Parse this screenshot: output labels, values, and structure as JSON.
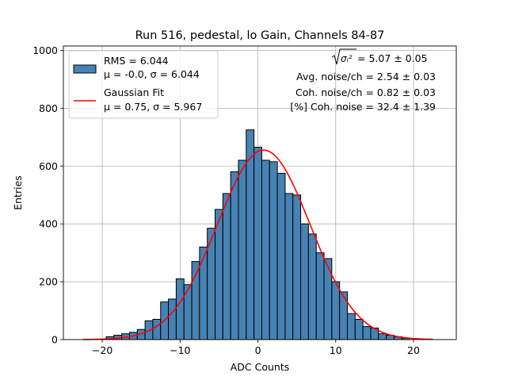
{
  "chart_data": {
    "type": "bar",
    "title": "Run 516, pedestal, lo Gain, Channels 84-87",
    "xlabel": "ADC Counts",
    "ylabel": "Entries",
    "xlim": [
      -25,
      25.5
    ],
    "ylim": [
      0,
      1015
    ],
    "xticks": [
      -20,
      -10,
      0,
      10,
      20
    ],
    "xtick_labels": [
      "−20",
      "−10",
      "0",
      "10",
      "20"
    ],
    "yticks": [
      0,
      200,
      400,
      600,
      800,
      1000
    ],
    "ytick_labels": [
      "0",
      "200",
      "400",
      "600",
      "800",
      "1000"
    ],
    "grid": true,
    "legend_position": "top-left",
    "legend": [
      {
        "kind": "histogram",
        "lines": [
          "RMS = 6.044",
          "μ = -0.0, σ = 6.044"
        ]
      },
      {
        "kind": "line",
        "lines": [
          "Gaussian Fit",
          "μ = 0.75, σ = 5.967"
        ]
      }
    ],
    "annotations": {
      "sqrt_label": "σᵢ²",
      "sqrt_value": " = 5.07 ± 0.05",
      "avg_noise": "Avg. noise/ch = 2.54 ± 0.03",
      "coh_noise": "Coh. noise/ch = 0.82 ± 0.03",
      "pct_coh": "[%] Coh. noise = 32.4 ± 1.39"
    },
    "histogram": {
      "bin_edges_start": -19.5,
      "bin_width": 1,
      "counts": [
        10,
        15,
        20,
        25,
        35,
        65,
        70,
        130,
        140,
        210,
        190,
        270,
        320,
        385,
        450,
        505,
        580,
        620,
        725,
        665,
        620,
        615,
        575,
        505,
        500,
        400,
        365,
        300,
        280,
        200,
        165,
        90,
        70,
        45,
        40,
        20,
        15,
        10,
        5
      ],
      "color": "#4682b4",
      "edge_color": "#000000"
    },
    "fit": {
      "name": "Gaussian Fit",
      "mu": 0.75,
      "sigma": 5.967,
      "amplitude": 655,
      "x_range": [
        -22.5,
        22.5
      ],
      "color": "#ff0000"
    }
  }
}
